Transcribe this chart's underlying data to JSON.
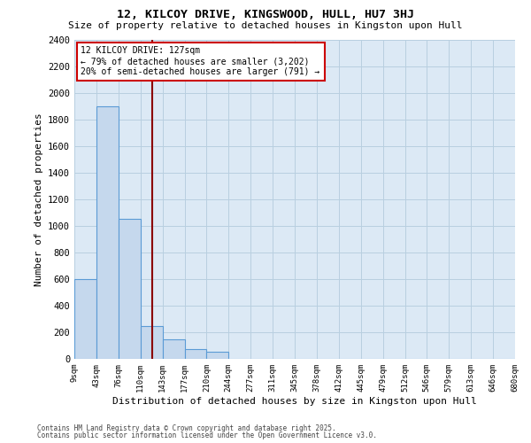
{
  "title1": "12, KILCOY DRIVE, KINGSWOOD, HULL, HU7 3HJ",
  "title2": "Size of property relative to detached houses in Kingston upon Hull",
  "xlabel": "Distribution of detached houses by size in Kingston upon Hull",
  "ylabel": "Number of detached properties",
  "bin_labels": [
    "9sqm",
    "43sqm",
    "76sqm",
    "110sqm",
    "143sqm",
    "177sqm",
    "210sqm",
    "244sqm",
    "277sqm",
    "311sqm",
    "345sqm",
    "378sqm",
    "412sqm",
    "445sqm",
    "479sqm",
    "512sqm",
    "546sqm",
    "579sqm",
    "613sqm",
    "646sqm",
    "680sqm"
  ],
  "bar_values": [
    600,
    1900,
    1050,
    250,
    150,
    75,
    55,
    0,
    0,
    0,
    0,
    0,
    0,
    0,
    0,
    0,
    0,
    0,
    0,
    0
  ],
  "bar_color": "#c5d8ed",
  "bar_edge_color": "#5b9bd5",
  "annotation_line1": "12 KILCOY DRIVE: 127sqm",
  "annotation_line2": "← 79% of detached houses are smaller (3,202)",
  "annotation_line3": "20% of semi-detached houses are larger (791) →",
  "red_line_color": "#8b0000",
  "ylim": [
    0,
    2400
  ],
  "yticks": [
    0,
    200,
    400,
    600,
    800,
    1000,
    1200,
    1400,
    1600,
    1800,
    2000,
    2200,
    2400
  ],
  "plot_bg_color": "#dce9f5",
  "grid_color": "#b8cfe0",
  "footer1": "Contains HM Land Registry data © Crown copyright and database right 2025.",
  "footer2": "Contains public sector information licensed under the Open Government Licence v3.0."
}
